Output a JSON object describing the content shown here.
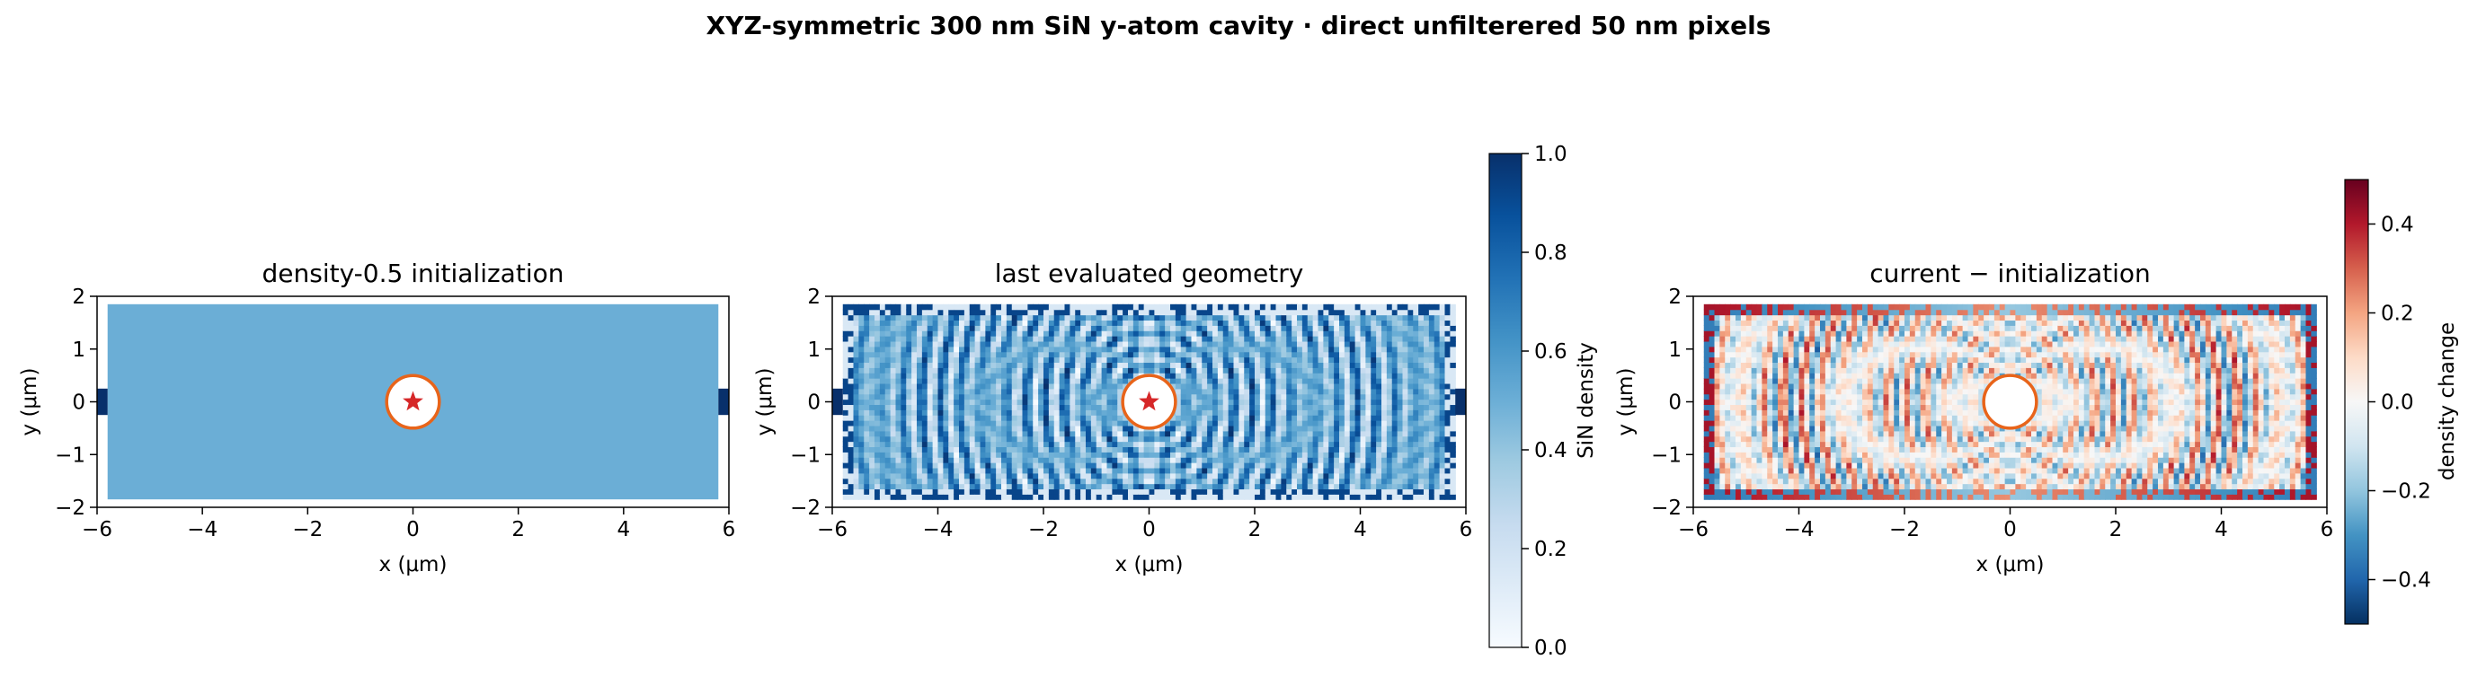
{
  "suptitle": "XYZ-symmetric 300 nm SiN y-atom cavity · direct unfilterered 50 nm pixels",
  "panels": [
    {
      "title": "density-0.5 initialization",
      "xlabel": "x (μm)",
      "ylabel": "y (μm)"
    },
    {
      "title": "last evaluated geometry",
      "xlabel": "x (μm)",
      "ylabel": "y (μm)"
    },
    {
      "title": "current − initialization",
      "xlabel": "x (μm)",
      "ylabel": "y (μm)"
    }
  ],
  "colorbars": [
    {
      "label": "SiN density",
      "ticks": [
        "0.0",
        "0.2",
        "0.4",
        "0.6",
        "0.8",
        "1.0"
      ],
      "range": [
        0,
        1
      ],
      "colormap": "Blues"
    },
    {
      "label": "density change",
      "ticks": [
        "−0.4",
        "−0.2",
        "0.0",
        "0.2",
        "0.4"
      ],
      "range": [
        -0.5,
        0.5
      ],
      "colormap": "RdBu_r"
    }
  ],
  "colors": {
    "atom_ring": "#e8641a",
    "atom_star": "#d62728",
    "waveguide": "#08306b"
  },
  "chart_data": [
    {
      "type": "heatmap",
      "title": "density-0.5 initialization",
      "xlabel": "x (μm)",
      "ylabel": "y (μm)",
      "xlim": [
        -6,
        6
      ],
      "ylim": [
        -2,
        2
      ],
      "xticks": [
        "−6",
        "−4",
        "−2",
        "0",
        "2",
        "4",
        "6"
      ],
      "yticks": [
        "−2",
        "−1",
        "0",
        "1",
        "2"
      ],
      "design_region": {
        "x": [
          -5.8,
          5.8
        ],
        "y": [
          -1.85,
          1.85
        ]
      },
      "uniform_density": 0.5,
      "atom": {
        "x": 0,
        "y": 0,
        "radius": 0.5
      },
      "waveguide": {
        "y": 0,
        "width": 0.5,
        "density": 1.0
      },
      "colorbar": "SiN density"
    },
    {
      "type": "heatmap",
      "title": "last evaluated geometry",
      "xlabel": "x (μm)",
      "ylabel": "y (μm)",
      "xlim": [
        -6,
        6
      ],
      "ylim": [
        -2,
        2
      ],
      "xticks": [
        "−6",
        "−4",
        "−2",
        "0",
        "2",
        "4",
        "6"
      ],
      "yticks": [
        "−2",
        "−1",
        "0",
        "1",
        "2"
      ],
      "design_region": {
        "x": [
          -5.8,
          5.8
        ],
        "y": [
          -1.85,
          1.85
        ]
      },
      "atom": {
        "x": 0,
        "y": 0,
        "radius": 0.5
      },
      "waveguide": {
        "y": 0,
        "width": 0.5,
        "density": 1.0
      },
      "colorbar": "SiN density",
      "vrange": [
        0,
        1
      ]
    },
    {
      "type": "heatmap",
      "title": "current − initialization",
      "xlabel": "x (μm)",
      "ylabel": "y (μm)",
      "xlim": [
        -6,
        6
      ],
      "ylim": [
        -2,
        2
      ],
      "xticks": [
        "−6",
        "−4",
        "−2",
        "0",
        "2",
        "4",
        "6"
      ],
      "yticks": [
        "−2",
        "−1",
        "0",
        "1",
        "2"
      ],
      "design_region": {
        "x": [
          -5.8,
          5.8
        ],
        "y": [
          -1.85,
          1.85
        ]
      },
      "atom": {
        "x": 0,
        "y": 0,
        "radius": 0.5
      },
      "colorbar": "density change",
      "vrange": [
        -0.5,
        0.5
      ]
    }
  ]
}
